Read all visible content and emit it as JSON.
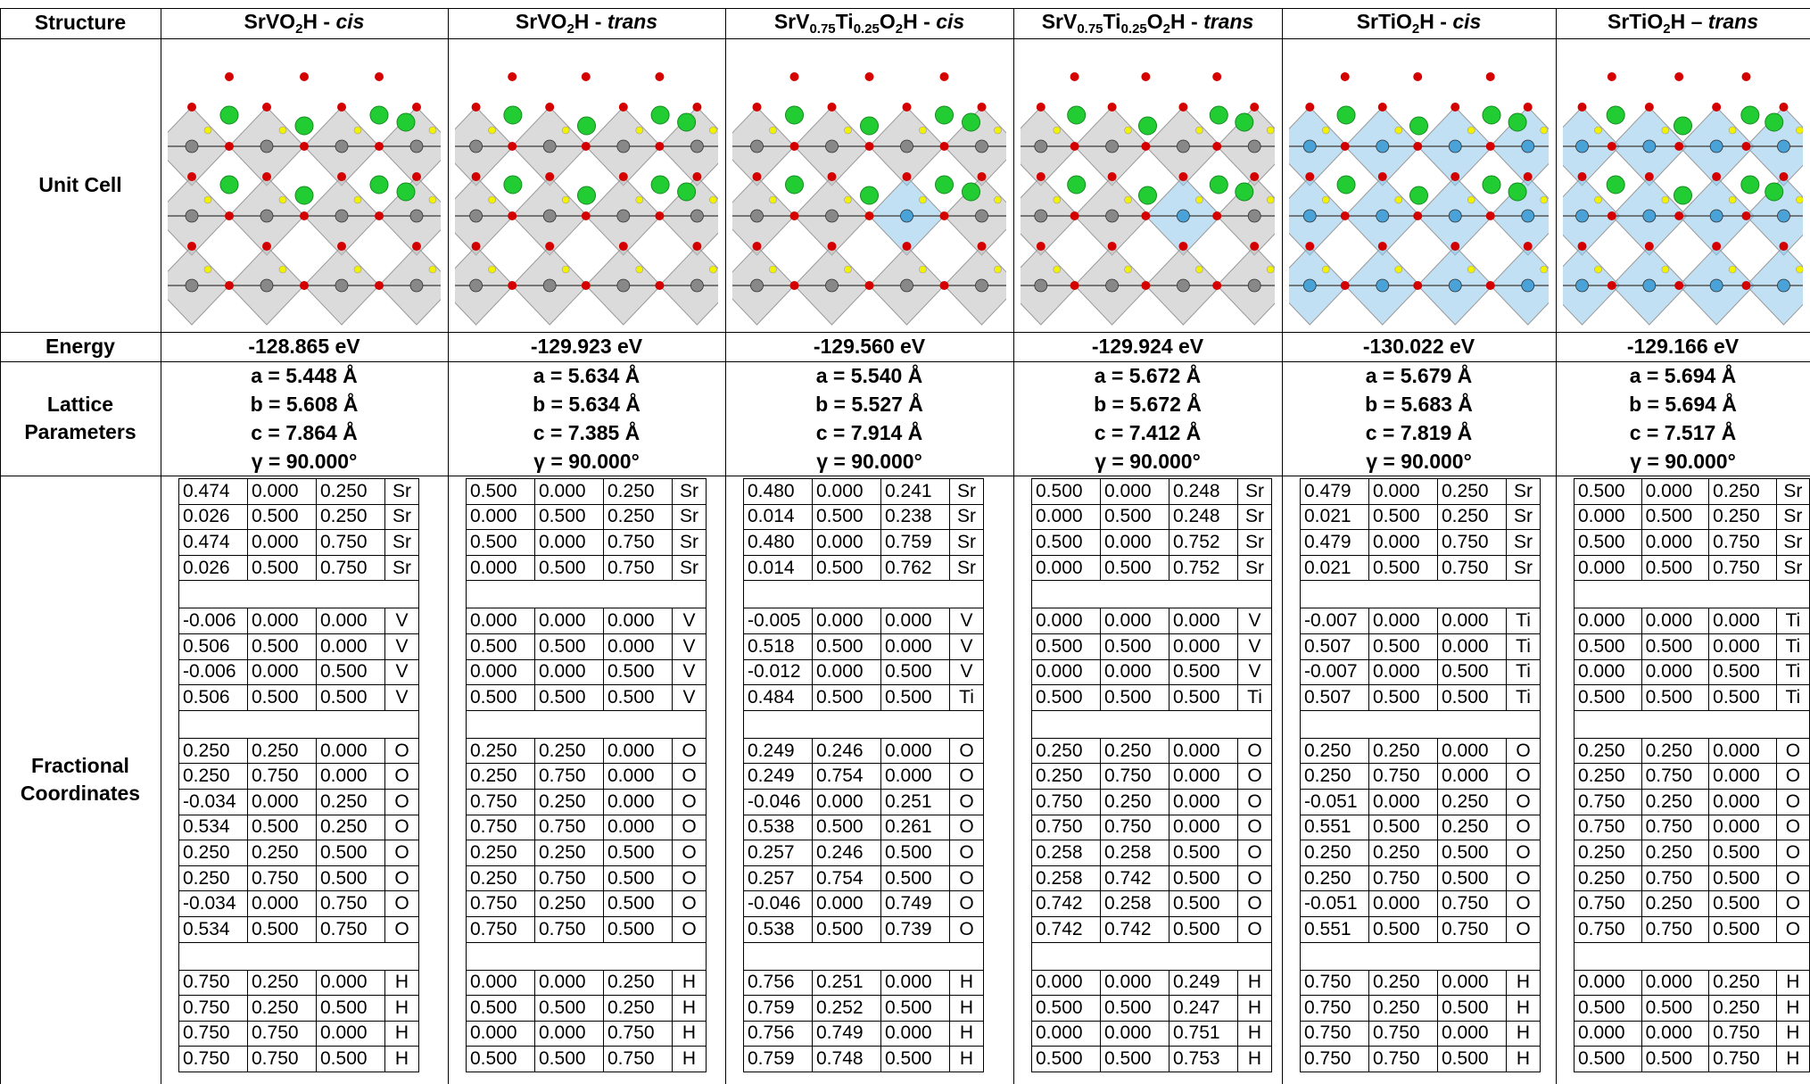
{
  "row_labels": {
    "structure": "Structure",
    "unit_cell": "Unit Cell",
    "energy": "Energy",
    "lattice_line1": "Lattice",
    "lattice_line2": "Parameters",
    "coords_line1": "Fractional",
    "coords_line2": "Coordinates"
  },
  "atom_colors": {
    "Sr": "#22cc33",
    "V": "#888888",
    "Ti": "#4aa3d8",
    "O": "#d40000",
    "H": "#f2f200",
    "polyhedra_V": "#bdbdbd",
    "polyhedra_Ti": "#8ec6ea"
  },
  "structures": [
    {
      "name_pre": "SrVO",
      "name_sub1": "2",
      "name_mid": "H - ",
      "name_sub0": "",
      "name_style": "cis",
      "name_sub0b": "",
      "octa": "V",
      "energy": "-128.865 eV",
      "lattice": [
        "a = 5.448 Å",
        "b = 5.608 Å",
        "c = 7.864 Å",
        "γ = 90.000°"
      ],
      "coords": [
        [
          [
            "0.474",
            "0.000",
            "0.250",
            "Sr"
          ],
          [
            "0.026",
            "0.500",
            "0.250",
            "Sr"
          ],
          [
            "0.474",
            "0.000",
            "0.750",
            "Sr"
          ],
          [
            "0.026",
            "0.500",
            "0.750",
            "Sr"
          ]
        ],
        [
          [
            "-0.006",
            "0.000",
            "0.000",
            "V"
          ],
          [
            "0.506",
            "0.500",
            "0.000",
            "V"
          ],
          [
            "-0.006",
            "0.000",
            "0.500",
            "V"
          ],
          [
            "0.506",
            "0.500",
            "0.500",
            "V"
          ]
        ],
        [
          [
            "0.250",
            "0.250",
            "0.000",
            "O"
          ],
          [
            "0.250",
            "0.750",
            "0.000",
            "O"
          ],
          [
            "-0.034",
            "0.000",
            "0.250",
            "O"
          ],
          [
            "0.534",
            "0.500",
            "0.250",
            "O"
          ],
          [
            "0.250",
            "0.250",
            "0.500",
            "O"
          ],
          [
            "0.250",
            "0.750",
            "0.500",
            "O"
          ],
          [
            "-0.034",
            "0.000",
            "0.750",
            "O"
          ],
          [
            "0.534",
            "0.500",
            "0.750",
            "O"
          ]
        ],
        [
          [
            "0.750",
            "0.250",
            "0.000",
            "H"
          ],
          [
            "0.750",
            "0.250",
            "0.500",
            "H"
          ],
          [
            "0.750",
            "0.750",
            "0.000",
            "H"
          ],
          [
            "0.750",
            "0.750",
            "0.500",
            "H"
          ]
        ]
      ]
    },
    {
      "octa": "V",
      "energy": "-129.923 eV",
      "lattice": [
        "a = 5.634 Å",
        "b = 5.634 Å",
        "c = 7.385 Å",
        "γ = 90.000°"
      ],
      "coords": [
        [
          [
            "0.500",
            "0.000",
            "0.250",
            "Sr"
          ],
          [
            "0.000",
            "0.500",
            "0.250",
            "Sr"
          ],
          [
            "0.500",
            "0.000",
            "0.750",
            "Sr"
          ],
          [
            "0.000",
            "0.500",
            "0.750",
            "Sr"
          ]
        ],
        [
          [
            "0.000",
            "0.000",
            "0.000",
            "V"
          ],
          [
            "0.500",
            "0.500",
            "0.000",
            "V"
          ],
          [
            "0.000",
            "0.000",
            "0.500",
            "V"
          ],
          [
            "0.500",
            "0.500",
            "0.500",
            "V"
          ]
        ],
        [
          [
            "0.250",
            "0.250",
            "0.000",
            "O"
          ],
          [
            "0.250",
            "0.750",
            "0.000",
            "O"
          ],
          [
            "0.750",
            "0.250",
            "0.000",
            "O"
          ],
          [
            "0.750",
            "0.750",
            "0.000",
            "O"
          ],
          [
            "0.250",
            "0.250",
            "0.500",
            "O"
          ],
          [
            "0.250",
            "0.750",
            "0.500",
            "O"
          ],
          [
            "0.750",
            "0.250",
            "0.500",
            "O"
          ],
          [
            "0.750",
            "0.750",
            "0.500",
            "O"
          ]
        ],
        [
          [
            "0.000",
            "0.000",
            "0.250",
            "H"
          ],
          [
            "0.500",
            "0.500",
            "0.250",
            "H"
          ],
          [
            "0.000",
            "0.000",
            "0.750",
            "H"
          ],
          [
            "0.500",
            "0.500",
            "0.750",
            "H"
          ]
        ]
      ]
    },
    {
      "octa": "VTi",
      "energy": "-129.560 eV",
      "lattice": [
        "a = 5.540 Å",
        "b = 5.527 Å",
        "c = 7.914 Å",
        "γ = 90.000°"
      ],
      "coords": [
        [
          [
            "0.480",
            "0.000",
            "0.241",
            "Sr"
          ],
          [
            "0.014",
            "0.500",
            "0.238",
            "Sr"
          ],
          [
            "0.480",
            "0.000",
            "0.759",
            "Sr"
          ],
          [
            "0.014",
            "0.500",
            "0.762",
            "Sr"
          ]
        ],
        [
          [
            "-0.005",
            "0.000",
            "0.000",
            "V"
          ],
          [
            "0.518",
            "0.500",
            "0.000",
            "V"
          ],
          [
            "-0.012",
            "0.000",
            "0.500",
            "V"
          ],
          [
            "0.484",
            "0.500",
            "0.500",
            "Ti"
          ]
        ],
        [
          [
            "0.249",
            "0.246",
            "0.000",
            "O"
          ],
          [
            "0.249",
            "0.754",
            "0.000",
            "O"
          ],
          [
            "-0.046",
            "0.000",
            "0.251",
            "O"
          ],
          [
            "0.538",
            "0.500",
            "0.261",
            "O"
          ],
          [
            "0.257",
            "0.246",
            "0.500",
            "O"
          ],
          [
            "0.257",
            "0.754",
            "0.500",
            "O"
          ],
          [
            "-0.046",
            "0.000",
            "0.749",
            "O"
          ],
          [
            "0.538",
            "0.500",
            "0.739",
            "O"
          ]
        ],
        [
          [
            "0.756",
            "0.251",
            "0.000",
            "H"
          ],
          [
            "0.759",
            "0.252",
            "0.500",
            "H"
          ],
          [
            "0.756",
            "0.749",
            "0.000",
            "H"
          ],
          [
            "0.759",
            "0.748",
            "0.500",
            "H"
          ]
        ]
      ]
    },
    {
      "octa": "VTi",
      "energy": "-129.924 eV",
      "lattice": [
        "a = 5.672 Å",
        "b = 5.672 Å",
        "c = 7.412 Å",
        "γ = 90.000°"
      ],
      "coords": [
        [
          [
            "0.500",
            "0.000",
            "0.248",
            "Sr"
          ],
          [
            "0.000",
            "0.500",
            "0.248",
            "Sr"
          ],
          [
            "0.500",
            "0.000",
            "0.752",
            "Sr"
          ],
          [
            "0.000",
            "0.500",
            "0.752",
            "Sr"
          ]
        ],
        [
          [
            "0.000",
            "0.000",
            "0.000",
            "V"
          ],
          [
            "0.500",
            "0.500",
            "0.000",
            "V"
          ],
          [
            "0.000",
            "0.000",
            "0.500",
            "V"
          ],
          [
            "0.500",
            "0.500",
            "0.500",
            "Ti"
          ]
        ],
        [
          [
            "0.250",
            "0.250",
            "0.000",
            "O"
          ],
          [
            "0.250",
            "0.750",
            "0.000",
            "O"
          ],
          [
            "0.750",
            "0.250",
            "0.000",
            "O"
          ],
          [
            "0.750",
            "0.750",
            "0.000",
            "O"
          ],
          [
            "0.258",
            "0.258",
            "0.500",
            "O"
          ],
          [
            "0.258",
            "0.742",
            "0.500",
            "O"
          ],
          [
            "0.742",
            "0.258",
            "0.500",
            "O"
          ],
          [
            "0.742",
            "0.742",
            "0.500",
            "O"
          ]
        ],
        [
          [
            "0.000",
            "0.000",
            "0.249",
            "H"
          ],
          [
            "0.500",
            "0.500",
            "0.247",
            "H"
          ],
          [
            "0.000",
            "0.000",
            "0.751",
            "H"
          ],
          [
            "0.500",
            "0.500",
            "0.753",
            "H"
          ]
        ]
      ]
    },
    {
      "octa": "Ti",
      "energy": "-130.022 eV",
      "lattice": [
        "a = 5.679 Å",
        "b = 5.683 Å",
        "c = 7.819 Å",
        "γ = 90.000°"
      ],
      "coords": [
        [
          [
            "0.479",
            "0.000",
            "0.250",
            "Sr"
          ],
          [
            "0.021",
            "0.500",
            "0.250",
            "Sr"
          ],
          [
            "0.479",
            "0.000",
            "0.750",
            "Sr"
          ],
          [
            "0.021",
            "0.500",
            "0.750",
            "Sr"
          ]
        ],
        [
          [
            "-0.007",
            "0.000",
            "0.000",
            "Ti"
          ],
          [
            "0.507",
            "0.500",
            "0.000",
            "Ti"
          ],
          [
            "-0.007",
            "0.000",
            "0.500",
            "Ti"
          ],
          [
            "0.507",
            "0.500",
            "0.500",
            "Ti"
          ]
        ],
        [
          [
            "0.250",
            "0.250",
            "0.000",
            "O"
          ],
          [
            "0.250",
            "0.750",
            "0.000",
            "O"
          ],
          [
            "-0.051",
            "0.000",
            "0.250",
            "O"
          ],
          [
            "0.551",
            "0.500",
            "0.250",
            "O"
          ],
          [
            "0.250",
            "0.250",
            "0.500",
            "O"
          ],
          [
            "0.250",
            "0.750",
            "0.500",
            "O"
          ],
          [
            "-0.051",
            "0.000",
            "0.750",
            "O"
          ],
          [
            "0.551",
            "0.500",
            "0.750",
            "O"
          ]
        ],
        [
          [
            "0.750",
            "0.250",
            "0.000",
            "H"
          ],
          [
            "0.750",
            "0.250",
            "0.500",
            "H"
          ],
          [
            "0.750",
            "0.750",
            "0.000",
            "H"
          ],
          [
            "0.750",
            "0.750",
            "0.500",
            "H"
          ]
        ]
      ]
    },
    {
      "octa": "Ti",
      "energy": "-129.166 eV",
      "lattice": [
        "a = 5.694 Å",
        "b = 5.694 Å",
        "c = 7.517 Å",
        "γ = 90.000°"
      ],
      "coords": [
        [
          [
            "0.500",
            "0.000",
            "0.250",
            "Sr"
          ],
          [
            "0.000",
            "0.500",
            "0.250",
            "Sr"
          ],
          [
            "0.500",
            "0.000",
            "0.750",
            "Sr"
          ],
          [
            "0.000",
            "0.500",
            "0.750",
            "Sr"
          ]
        ],
        [
          [
            "0.000",
            "0.000",
            "0.000",
            "Ti"
          ],
          [
            "0.500",
            "0.500",
            "0.000",
            "Ti"
          ],
          [
            "0.000",
            "0.000",
            "0.500",
            "Ti"
          ],
          [
            "0.500",
            "0.500",
            "0.500",
            "Ti"
          ]
        ],
        [
          [
            "0.250",
            "0.250",
            "0.000",
            "O"
          ],
          [
            "0.250",
            "0.750",
            "0.000",
            "O"
          ],
          [
            "0.750",
            "0.250",
            "0.000",
            "O"
          ],
          [
            "0.750",
            "0.750",
            "0.000",
            "O"
          ],
          [
            "0.250",
            "0.250",
            "0.500",
            "O"
          ],
          [
            "0.250",
            "0.750",
            "0.500",
            "O"
          ],
          [
            "0.750",
            "0.250",
            "0.500",
            "O"
          ],
          [
            "0.750",
            "0.750",
            "0.500",
            "O"
          ]
        ],
        [
          [
            "0.000",
            "0.000",
            "0.250",
            "H"
          ],
          [
            "0.500",
            "0.500",
            "0.250",
            "H"
          ],
          [
            "0.000",
            "0.000",
            "0.750",
            "H"
          ],
          [
            "0.500",
            "0.500",
            "0.750",
            "H"
          ]
        ]
      ]
    }
  ],
  "headers": [
    {
      "a": "SrVO",
      "a_sub": "2",
      "b": "H - ",
      "style": "cis"
    },
    {
      "a": "SrVO",
      "a_sub": "2",
      "b": "H - ",
      "style": "trans"
    },
    {
      "a": "SrV",
      "a_sub": "0.75",
      "b": "Ti",
      "b_sub": "0.25",
      "c": "O",
      "c_sub": "2",
      "d": "H - ",
      "style": "cis"
    },
    {
      "a": "SrV",
      "a_sub": "0.75",
      "b": "Ti",
      "b_sub": "0.25",
      "c": "O",
      "c_sub": "2",
      "d": "H - ",
      "style": "trans"
    },
    {
      "a": "SrTiO",
      "a_sub": "2",
      "b": "H - ",
      "style": "cis"
    },
    {
      "a": "SrTiO",
      "a_sub": "2",
      "b": "H – ",
      "style": "trans"
    }
  ]
}
